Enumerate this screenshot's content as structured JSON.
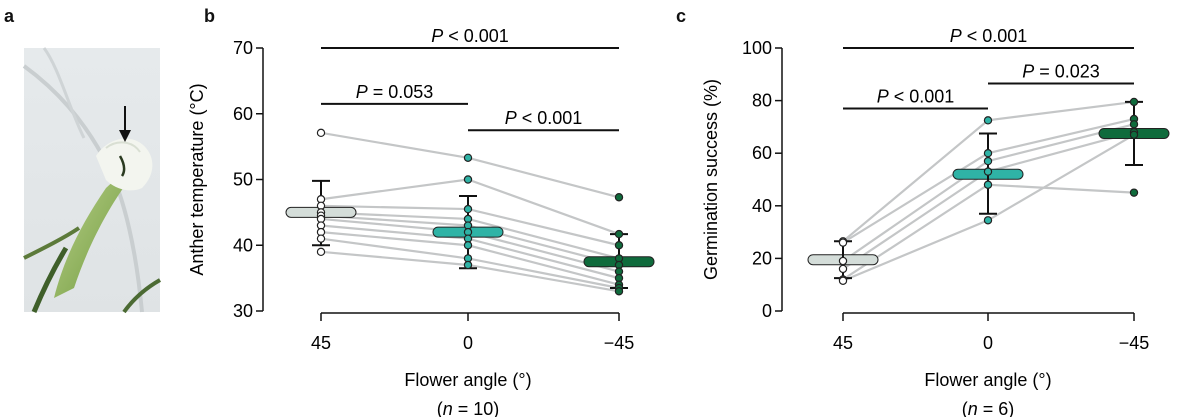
{
  "panels": {
    "a": "a",
    "b": "b",
    "c": "c"
  },
  "chart_data": [
    {
      "type": "scatter",
      "panel": "b",
      "categories": [
        "45",
        "0",
        "−45"
      ],
      "xlabel": "Flower angle (°)",
      "n_label": {
        "pre": "(",
        "n": "n",
        "post": " = 10)"
      },
      "ylabel": "Anther temperature (°C)",
      "ylim": [
        30,
        70
      ],
      "yticks": [
        "30",
        "40",
        "50",
        "60",
        "70"
      ],
      "colors": [
        "#d4ddd9",
        "#2fb3a6",
        "#0f6b3c"
      ],
      "means": [
        45,
        42,
        37.5
      ],
      "sd": [
        [
          40,
          49.8
        ],
        [
          36.5,
          47.5
        ],
        [
          33.5,
          41.7
        ]
      ],
      "lines": [
        [
          57.1,
          53.3,
          47.3
        ],
        [
          47.0,
          50.0,
          41.7
        ],
        [
          46.0,
          45.5,
          40.0
        ],
        [
          45.0,
          44.0,
          38.0
        ],
        [
          44.5,
          43.0,
          37.0
        ],
        [
          44.0,
          42.0,
          36.0
        ],
        [
          43.0,
          41.0,
          35.0
        ],
        [
          42.0,
          40.0,
          34.0
        ],
        [
          41.0,
          38.0,
          33.5
        ],
        [
          39.0,
          37.0,
          33.0
        ]
      ],
      "comparisons": [
        {
          "from": 0,
          "to": 2,
          "y": 70,
          "label": "< 0.001"
        },
        {
          "from": 0,
          "to": 1,
          "y": 61.5,
          "label": "= 0.053"
        },
        {
          "from": 1,
          "to": 2,
          "y": 57.5,
          "label": "< 0.001"
        }
      ],
      "p_symbol": "P"
    },
    {
      "type": "scatter",
      "panel": "c",
      "categories": [
        "45",
        "0",
        "−45"
      ],
      "xlabel": "Flower angle (°)",
      "n_label": {
        "pre": "(",
        "n": "n",
        "post": " = 6)"
      },
      "ylabel": "Germination success (%)",
      "ylim": [
        0,
        100
      ],
      "yticks": [
        "0",
        "20",
        "40",
        "60",
        "80",
        "100"
      ],
      "colors": [
        "#d4ddd9",
        "#2fb3a6",
        "#0f6b3c"
      ],
      "means": [
        19.5,
        52,
        67.5
      ],
      "sd": [
        [
          12.5,
          26.5
        ],
        [
          37,
          67.5
        ],
        [
          55.5,
          79.5
        ]
      ],
      "lines": [
        [
          26.5,
          72.5,
          79.5
        ],
        [
          26.0,
          60.0,
          73.0
        ],
        [
          19.0,
          57.0,
          71.0
        ],
        [
          16.0,
          53.0,
          68.0
        ],
        [
          12.0,
          48.0,
          45.0
        ],
        [
          11.5,
          34.5,
          67.0
        ]
      ],
      "comparisons": [
        {
          "from": 0,
          "to": 2,
          "y": 100,
          "label": "< 0.001"
        },
        {
          "from": 0,
          "to": 1,
          "y": 77,
          "label": "< 0.001"
        },
        {
          "from": 1,
          "to": 2,
          "y": 86.5,
          "label": "= 0.023"
        }
      ],
      "p_symbol": "P"
    }
  ]
}
